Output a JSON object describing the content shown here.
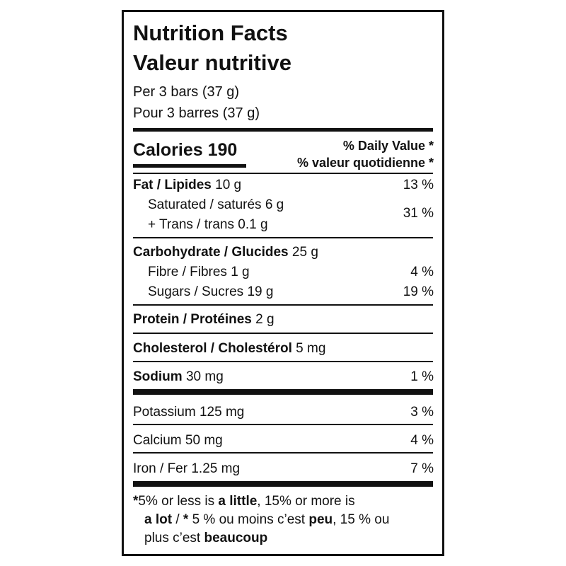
{
  "header": {
    "title": "Nutrition Facts",
    "title_fr": "Valeur nutritive",
    "serving": "Per 3 bars (37 g)",
    "serving_fr": "Pour 3 barres (37 g)"
  },
  "calories": {
    "label": "Calories",
    "value": "190"
  },
  "daily_value": {
    "label": "% Daily Value *",
    "label_fr": "% valeur quotidienne *"
  },
  "fat": {
    "name": "Fat / Lipides",
    "amount": "10 g",
    "dv": "13 %"
  },
  "saturated": {
    "name": "Saturated / saturés 6 g",
    "name2": "+ Trans / trans 0.1 g",
    "dv": "31 %"
  },
  "carbohydrate": {
    "name": "Carbohydrate / Glucides",
    "amount": "25 g"
  },
  "fibre": {
    "name": "Fibre / Fibres 1 g",
    "dv": "4 %"
  },
  "sugars": {
    "name": "Sugars / Sucres 19 g",
    "dv": "19 %"
  },
  "protein": {
    "name": "Protein / Protéines",
    "amount": "2 g"
  },
  "cholesterol": {
    "name": "Cholesterol / Cholestérol",
    "amount": "5 mg"
  },
  "sodium": {
    "name": "Sodium",
    "amount": "30 mg",
    "dv": "1 %"
  },
  "potassium": {
    "name": "Potassium 125 mg",
    "dv": "3 %"
  },
  "calcium": {
    "name": "Calcium 50 mg",
    "dv": "4 %"
  },
  "iron": {
    "name": "Iron / Fer 1.25 mg",
    "dv": "7 %"
  },
  "footnote": {
    "lines": [
      [
        "*",
        "5% or less is ",
        "a little",
        ", 15% or more is"
      ],
      [
        "a lot",
        " / ",
        "*",
        " 5 % ou moins c’est ",
        "peu",
        ", 15 % ou"
      ],
      [
        "plus c’est ",
        "beaucoup"
      ]
    ]
  }
}
